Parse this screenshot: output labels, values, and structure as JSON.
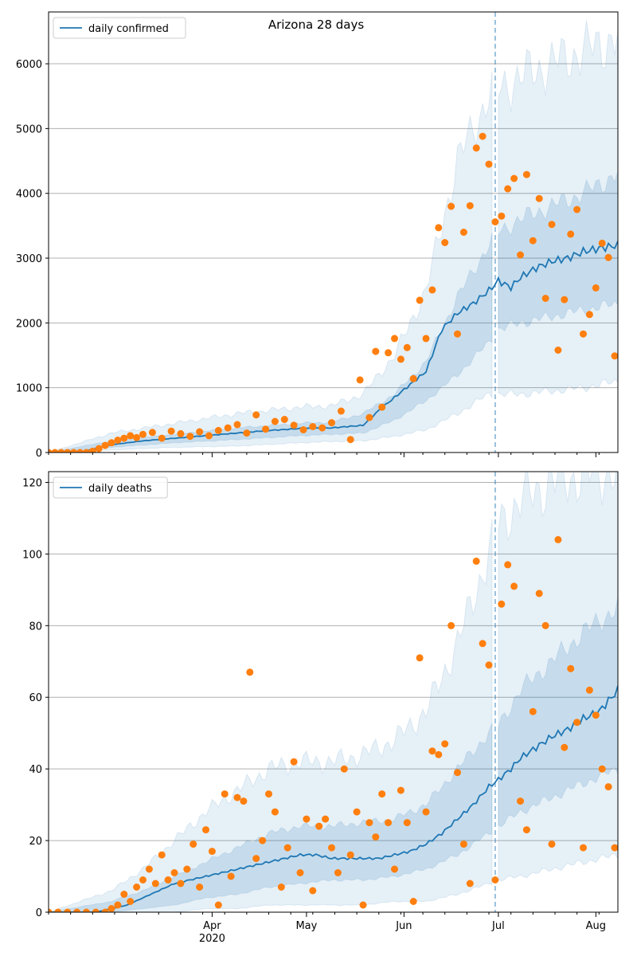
{
  "chart_data": [
    {
      "type": "line",
      "title": "Arizona 28 days",
      "legend": {
        "placement": "top-left",
        "entries": [
          "daily confirmed"
        ]
      },
      "ylim": [
        0,
        6800
      ],
      "yticks": [
        0,
        1000,
        2000,
        3000,
        4000,
        5000,
        6000
      ],
      "grid": "horizontal",
      "vline_day": 142,
      "band_color": "#1f77b4",
      "line_color": "#1f77b4",
      "point_color": "#ff7f0e",
      "series": [
        {
          "name": "daily confirmed",
          "x_day": [
            0,
            10,
            20,
            30,
            40,
            50,
            60,
            70,
            80,
            90,
            100,
            105,
            110,
            115,
            120,
            125,
            130,
            135,
            140,
            143,
            147,
            150,
            155,
            160,
            165,
            170,
            175,
            181
          ],
          "values": [
            0,
            5,
            120,
            180,
            220,
            260,
            300,
            340,
            370,
            380,
            420,
            650,
            850,
            1050,
            1250,
            1900,
            2150,
            2300,
            2500,
            2650,
            2550,
            2700,
            2850,
            2950,
            3000,
            3100,
            3150,
            3200
          ]
        },
        {
          "name": "bands",
          "x_day": [
            0,
            20,
            40,
            60,
            80,
            90,
            100,
            110,
            120,
            130,
            140,
            143,
            150,
            160,
            170,
            181
          ],
          "inner_low": [
            0,
            80,
            150,
            200,
            260,
            280,
            300,
            500,
            800,
            1200,
            1700,
            1900,
            2000,
            2100,
            2200,
            2300
          ],
          "inner_high": [
            0,
            180,
            280,
            380,
            450,
            470,
            600,
            900,
            1400,
            2400,
            3200,
            3400,
            3600,
            3800,
            4000,
            4300
          ],
          "outer_low": [
            0,
            40,
            80,
            100,
            150,
            170,
            180,
            250,
            350,
            600,
            900,
            900,
            900,
            950,
            1000,
            1100
          ],
          "outer_high": [
            0,
            300,
            450,
            600,
            700,
            720,
            900,
            1500,
            2500,
            4500,
            5500,
            5600,
            5800,
            6000,
            6200,
            6400
          ]
        },
        {
          "name": "observed",
          "x_day": [
            0,
            2,
            4,
            6,
            8,
            10,
            12,
            14,
            16,
            18,
            20,
            22,
            24,
            26,
            28,
            30,
            33,
            36,
            39,
            42,
            45,
            48,
            51,
            54,
            57,
            60,
            63,
            66,
            69,
            72,
            75,
            78,
            81,
            84,
            87,
            90,
            93,
            96,
            99,
            102,
            104,
            106,
            108,
            110,
            112,
            114,
            116,
            118,
            120,
            122,
            124,
            126,
            128,
            130,
            132,
            134,
            136,
            138,
            140,
            142,
            144,
            146,
            148,
            150,
            152,
            154,
            156,
            158,
            160,
            162,
            164,
            166,
            168,
            170,
            172,
            174,
            176,
            178,
            180
          ],
          "values": [
            0,
            0,
            0,
            0,
            0,
            0,
            0,
            20,
            60,
            110,
            150,
            190,
            220,
            260,
            230,
            280,
            310,
            220,
            330,
            290,
            250,
            320,
            260,
            340,
            380,
            430,
            300,
            580,
            360,
            480,
            510,
            420,
            350,
            400,
            380,
            460,
            640,
            200,
            1120,
            540,
            1560,
            700,
            1540,
            1760,
            1440,
            1620,
            1140,
            2350,
            1760,
            2510,
            3470,
            3240,
            3800,
            1830,
            3400,
            3810,
            4700,
            4880,
            4450,
            3560,
            3650,
            4070,
            4230,
            3050,
            4290,
            3270,
            3920,
            2380,
            3520,
            1580,
            2360,
            3370,
            3750,
            1830,
            2130,
            2540,
            3230,
            3010,
            1490
          ]
        }
      ]
    },
    {
      "type": "line",
      "title": "",
      "legend": {
        "placement": "top-left",
        "entries": [
          "daily deaths"
        ]
      },
      "ylim": [
        0,
        123
      ],
      "yticks": [
        0,
        20,
        40,
        60,
        80,
        100,
        120
      ],
      "grid": "horizontal",
      "vline_day": 142,
      "band_color": "#1f77b4",
      "line_color": "#1f77b4",
      "point_color": "#ff7f0e",
      "series": [
        {
          "name": "daily deaths",
          "x_day": [
            0,
            15,
            20,
            25,
            30,
            35,
            40,
            45,
            50,
            55,
            60,
            65,
            70,
            75,
            80,
            85,
            90,
            95,
            100,
            105,
            110,
            115,
            120,
            125,
            130,
            135,
            140,
            143,
            147,
            150,
            155,
            160,
            165,
            170,
            175,
            181
          ],
          "values": [
            0,
            0,
            1,
            2,
            4,
            6,
            8,
            9,
            10,
            11,
            12,
            13,
            14,
            15,
            16,
            16,
            15,
            15,
            15,
            15,
            16,
            17,
            19,
            22,
            26,
            30,
            35,
            37,
            40,
            43,
            46,
            49,
            51,
            54,
            56,
            62
          ]
        },
        {
          "name": "bands",
          "x_day": [
            0,
            20,
            30,
            40,
            50,
            60,
            70,
            80,
            90,
            100,
            110,
            120,
            130,
            140,
            143,
            150,
            160,
            170,
            181
          ],
          "inner_low": [
            0,
            0,
            1,
            2,
            4,
            5,
            7,
            8,
            9,
            9,
            10,
            12,
            16,
            22,
            24,
            28,
            32,
            36,
            40
          ],
          "inner_high": [
            0,
            3,
            6,
            10,
            14,
            18,
            22,
            24,
            24,
            25,
            26,
            30,
            40,
            50,
            52,
            62,
            70,
            78,
            85
          ],
          "outer_low": [
            0,
            0,
            0,
            0,
            1,
            1,
            2,
            2,
            2,
            2,
            3,
            3,
            5,
            8,
            9,
            10,
            12,
            14,
            16
          ],
          "outer_high": [
            0,
            6,
            12,
            20,
            28,
            34,
            40,
            42,
            42,
            44,
            48,
            56,
            75,
            100,
            108,
            115,
            120,
            122,
            123
          ]
        },
        {
          "name": "observed",
          "x_day": [
            0,
            3,
            6,
            9,
            12,
            15,
            18,
            20,
            22,
            24,
            26,
            28,
            30,
            32,
            34,
            36,
            38,
            40,
            42,
            44,
            46,
            48,
            50,
            52,
            54,
            56,
            58,
            60,
            62,
            64,
            66,
            68,
            70,
            72,
            74,
            76,
            78,
            80,
            82,
            84,
            86,
            88,
            90,
            92,
            94,
            96,
            98,
            100,
            102,
            104,
            106,
            108,
            110,
            112,
            114,
            116,
            118,
            120,
            122,
            124,
            126,
            128,
            130,
            132,
            134,
            136,
            138,
            140,
            142,
            144,
            146,
            148,
            150,
            152,
            154,
            156,
            158,
            160,
            162,
            164,
            166,
            168,
            170,
            172,
            174,
            176,
            178,
            180
          ],
          "values": [
            0,
            0,
            0,
            0,
            0,
            0,
            0,
            1,
            2,
            5,
            3,
            7,
            9,
            12,
            8,
            16,
            9,
            11,
            8,
            12,
            19,
            7,
            23,
            17,
            2,
            33,
            10,
            32,
            31,
            67,
            15,
            20,
            33,
            28,
            7,
            18,
            42,
            11,
            26,
            6,
            24,
            26,
            18,
            11,
            40,
            16,
            28,
            2,
            25,
            21,
            33,
            25,
            12,
            34,
            25,
            3,
            71,
            28,
            45,
            44,
            47,
            80,
            39,
            19,
            8,
            98,
            75,
            69,
            9,
            86,
            97,
            91,
            31,
            23,
            56,
            89,
            80,
            19,
            104,
            46,
            68,
            53,
            18,
            62,
            55,
            40,
            35,
            18
          ]
        }
      ]
    }
  ],
  "xaxis": {
    "start": "2020-02-09",
    "month_ticks": [
      {
        "day": 52,
        "label": "Apr"
      },
      {
        "day": 82,
        "label": "May"
      },
      {
        "day": 113,
        "label": "Jun"
      },
      {
        "day": 143,
        "label": "Jul"
      },
      {
        "day": 174,
        "label": "Aug"
      }
    ],
    "year_label": "2020",
    "range_days": [
      0,
      181
    ]
  }
}
